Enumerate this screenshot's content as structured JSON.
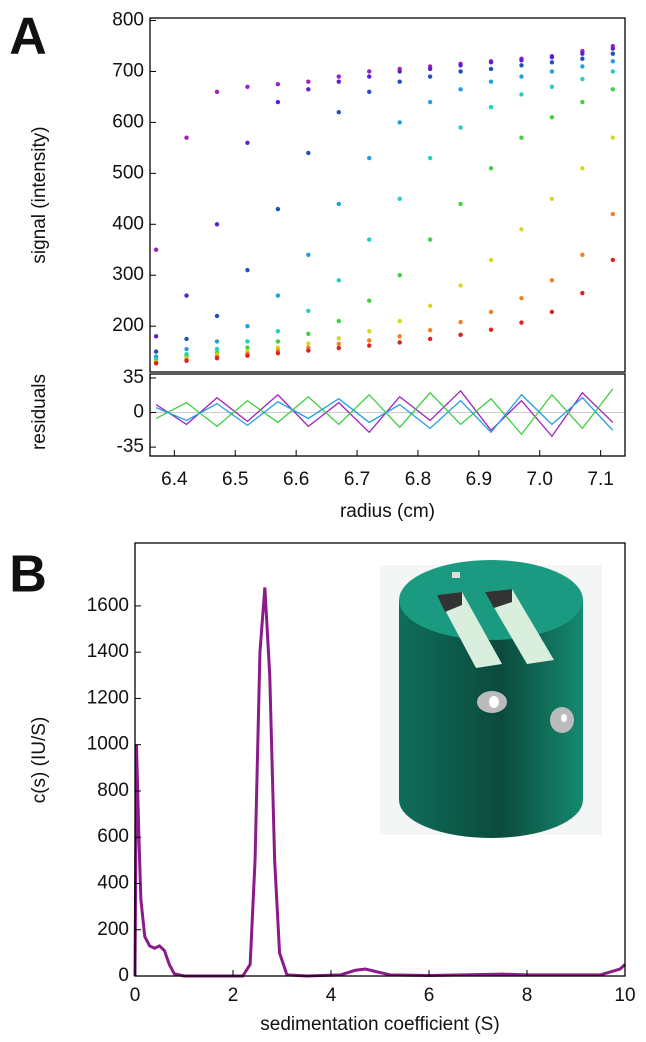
{
  "chart_data": [
    {
      "type": "scatter",
      "panel_label": "A",
      "y_label": "signal (intensity)",
      "xlim": [
        6.36,
        7.14
      ],
      "ylim": [
        110,
        805
      ],
      "yticks": [
        200,
        300,
        400,
        500,
        600,
        700,
        800
      ],
      "x": [
        6.37,
        6.42,
        6.47,
        6.52,
        6.57,
        6.62,
        6.67,
        6.72,
        6.77,
        6.82,
        6.87,
        6.92,
        6.97,
        7.02,
        7.07,
        7.12
      ],
      "series": [
        {
          "color": "#a020c0",
          "values": [
            350,
            570,
            660,
            670,
            675,
            680,
            690,
            700,
            705,
            710,
            715,
            720,
            725,
            730,
            740,
            750
          ]
        },
        {
          "color": "#5a20d0",
          "values": [
            180,
            260,
            400,
            560,
            640,
            665,
            680,
            690,
            700,
            705,
            712,
            718,
            722,
            728,
            735,
            745
          ]
        },
        {
          "color": "#2050c0",
          "values": [
            150,
            175,
            220,
            310,
            430,
            540,
            620,
            660,
            680,
            690,
            700,
            705,
            712,
            718,
            725,
            735
          ]
        },
        {
          "color": "#20a0e0",
          "values": [
            140,
            155,
            170,
            200,
            260,
            340,
            440,
            530,
            600,
            640,
            665,
            680,
            690,
            700,
            710,
            720
          ]
        },
        {
          "color": "#20d0c0",
          "values": [
            135,
            145,
            155,
            170,
            190,
            230,
            290,
            370,
            450,
            530,
            590,
            630,
            655,
            670,
            685,
            700
          ]
        },
        {
          "color": "#40d040",
          "values": [
            132,
            140,
            148,
            158,
            170,
            185,
            210,
            250,
            300,
            370,
            440,
            510,
            570,
            610,
            640,
            665
          ]
        },
        {
          "color": "#d8d820",
          "values": [
            130,
            137,
            144,
            150,
            158,
            166,
            176,
            190,
            210,
            240,
            280,
            330,
            390,
            450,
            510,
            570
          ]
        },
        {
          "color": "#f08020",
          "values": [
            128,
            134,
            140,
            146,
            152,
            158,
            165,
            172,
            180,
            192,
            208,
            228,
            255,
            290,
            340,
            420
          ]
        },
        {
          "color": "#e02020",
          "values": [
            127,
            132,
            137,
            142,
            147,
            152,
            157,
            162,
            168,
            175,
            183,
            193,
            207,
            228,
            265,
            330
          ]
        }
      ]
    },
    {
      "type": "line",
      "y_label": "residuals",
      "x_label": "radius (cm)",
      "xlim": [
        6.36,
        7.14
      ],
      "ylim": [
        -44,
        39
      ],
      "yticks": [
        35,
        0,
        -35
      ],
      "xticks": [
        6.4,
        6.5,
        6.6,
        6.7,
        6.8,
        6.9,
        {
          "value": 7.0,
          "label": "7.0"
        },
        7.1
      ],
      "x": [
        6.37,
        6.42,
        6.47,
        6.52,
        6.57,
        6.62,
        6.67,
        6.72,
        6.77,
        6.82,
        6.87,
        6.92,
        6.97,
        7.02,
        7.07,
        7.12
      ],
      "series": [
        {
          "color": "#a020c0",
          "values": [
            8,
            -12,
            15,
            -9,
            18,
            -14,
            10,
            -20,
            16,
            -8,
            22,
            -18,
            12,
            -24,
            20,
            -10
          ]
        },
        {
          "color": "#40d040",
          "values": [
            -6,
            10,
            -14,
            12,
            -10,
            16,
            -12,
            18,
            -15,
            20,
            -12,
            14,
            -22,
            18,
            -16,
            24
          ]
        },
        {
          "color": "#20a0e0",
          "values": [
            5,
            -8,
            9,
            -13,
            11,
            -6,
            14,
            -10,
            8,
            -16,
            12,
            -20,
            18,
            -12,
            15,
            -18
          ]
        }
      ]
    },
    {
      "type": "line",
      "panel_label": "B",
      "y_label": "c(s) (IU/S)",
      "x_label": "sedimentation coefficient (S)",
      "xlim": [
        0,
        10
      ],
      "ylim": [
        0,
        1872
      ],
      "xticks": [
        0,
        2,
        4,
        6,
        8,
        10
      ],
      "yticks": [
        0,
        200,
        400,
        600,
        800,
        1000,
        1200,
        1400,
        1600
      ],
      "x": [
        0,
        0.03,
        0.08,
        0.12,
        0.2,
        0.3,
        0.4,
        0.5,
        0.6,
        0.7,
        0.8,
        1.0,
        2.2,
        2.35,
        2.45,
        2.55,
        2.65,
        2.75,
        2.85,
        2.95,
        3.1,
        3.5,
        4.2,
        4.5,
        4.7,
        4.9,
        5.2,
        6,
        7.5,
        8,
        9.5,
        9.9,
        10
      ],
      "series": [
        {
          "color": "#8b1a8b",
          "values": [
            0,
            1000,
            600,
            330,
            170,
            130,
            120,
            130,
            110,
            50,
            10,
            0,
            0,
            50,
            500,
            1400,
            1680,
            1300,
            500,
            100,
            5,
            0,
            5,
            25,
            30,
            20,
            5,
            2,
            8,
            5,
            5,
            30,
            50
          ]
        }
      ]
    }
  ]
}
